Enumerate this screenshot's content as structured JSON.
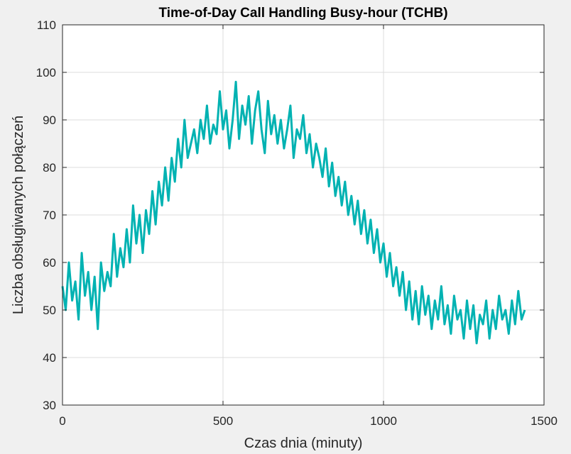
{
  "chart_data": {
    "type": "line",
    "title": "Time-of-Day Call Handling Busy-hour (TCHB)",
    "xlabel": "Czas dnia (minuty)",
    "ylabel": "Liczba obsługiwanych połączeń",
    "xlim": [
      0,
      1500
    ],
    "ylim": [
      30,
      110
    ],
    "xticks": [
      0,
      500,
      1000,
      1500
    ],
    "yticks": [
      30,
      40,
      50,
      60,
      70,
      80,
      90,
      100,
      110
    ],
    "grid": true,
    "legend": "none",
    "series": [
      {
        "color": "#00b2b2",
        "x": [
          0,
          10,
          20,
          30,
          40,
          50,
          60,
          70,
          80,
          90,
          100,
          110,
          120,
          130,
          140,
          150,
          160,
          170,
          180,
          190,
          200,
          210,
          220,
          230,
          240,
          250,
          260,
          270,
          280,
          290,
          300,
          310,
          320,
          330,
          340,
          350,
          360,
          370,
          380,
          390,
          400,
          410,
          420,
          430,
          440,
          450,
          460,
          470,
          480,
          490,
          500,
          510,
          520,
          530,
          540,
          550,
          560,
          570,
          580,
          590,
          600,
          610,
          620,
          630,
          640,
          650,
          660,
          670,
          680,
          690,
          700,
          710,
          720,
          730,
          740,
          750,
          760,
          770,
          780,
          790,
          800,
          810,
          820,
          830,
          840,
          850,
          860,
          870,
          880,
          890,
          900,
          910,
          920,
          930,
          940,
          950,
          960,
          970,
          980,
          990,
          1000,
          1010,
          1020,
          1030,
          1040,
          1050,
          1060,
          1070,
          1080,
          1090,
          1100,
          1110,
          1120,
          1130,
          1140,
          1150,
          1160,
          1170,
          1180,
          1190,
          1200,
          1210,
          1220,
          1230,
          1240,
          1250,
          1260,
          1270,
          1280,
          1290,
          1300,
          1310,
          1320,
          1330,
          1340,
          1350,
          1360,
          1370,
          1380,
          1390,
          1400,
          1410,
          1420,
          1430,
          1440
        ],
        "y": [
          55,
          50,
          60,
          52,
          56,
          48,
          62,
          53,
          58,
          50,
          57,
          46,
          60,
          54,
          58,
          55,
          66,
          57,
          63,
          59,
          67,
          60,
          72,
          64,
          70,
          62,
          71,
          66,
          75,
          68,
          77,
          72,
          80,
          73,
          82,
          77,
          86,
          80,
          90,
          82,
          85,
          88,
          83,
          90,
          86,
          93,
          85,
          89,
          87,
          96,
          88,
          92,
          84,
          90,
          98,
          86,
          93,
          89,
          95,
          85,
          92,
          96,
          88,
          83,
          94,
          87,
          91,
          85,
          90,
          84,
          88,
          93,
          82,
          88,
          86,
          91,
          83,
          87,
          80,
          85,
          82,
          78,
          84,
          76,
          81,
          74,
          78,
          72,
          77,
          70,
          74,
          68,
          73,
          66,
          71,
          64,
          69,
          62,
          67,
          60,
          64,
          57,
          62,
          55,
          59,
          53,
          58,
          50,
          56,
          48,
          54,
          47,
          55,
          49,
          53,
          46,
          52,
          48,
          55,
          47,
          51,
          45,
          53,
          48,
          50,
          44,
          52,
          46,
          51,
          43,
          49,
          47,
          52,
          44,
          50,
          46,
          53,
          48,
          50,
          45,
          52,
          47,
          54,
          48,
          50
        ]
      }
    ]
  }
}
